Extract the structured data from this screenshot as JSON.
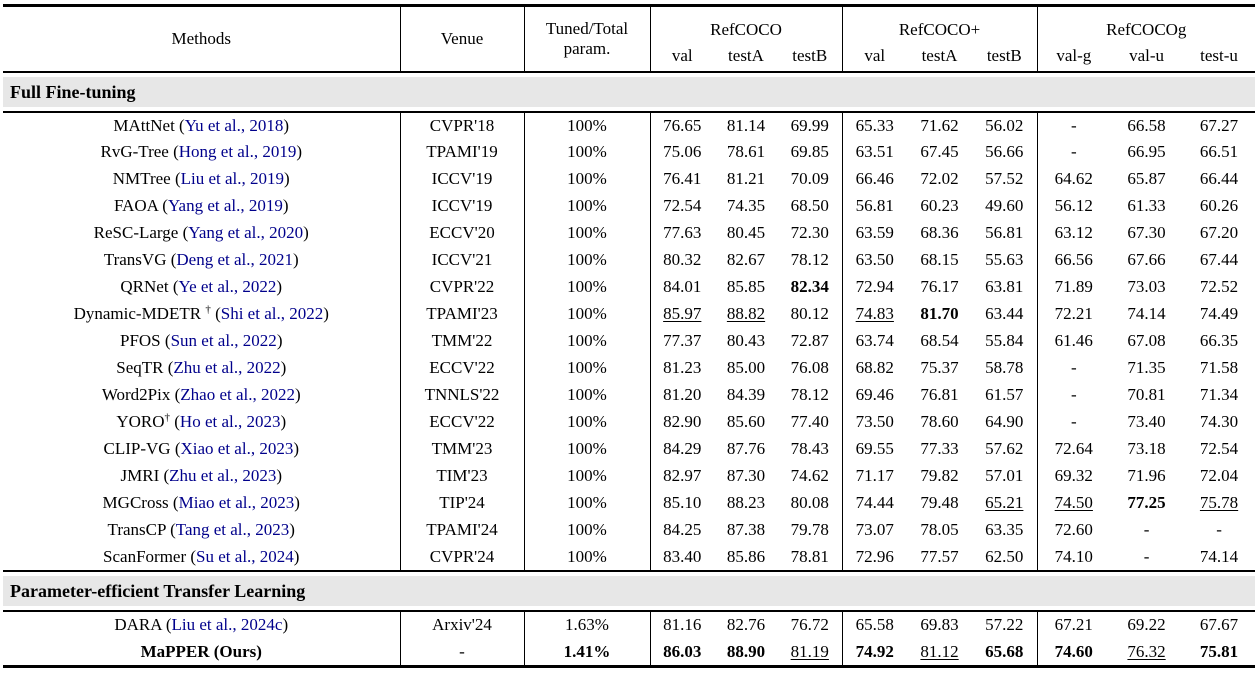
{
  "colors": {
    "citation_link": "#00008B",
    "section_band_bg": "#e7e7e7",
    "rule": "#000000"
  },
  "header": {
    "methods": "Methods",
    "venue": "Venue",
    "param_top": "Tuned/Total",
    "param_bottom": "param.",
    "groups": [
      {
        "label": "RefCOCO",
        "subs": [
          "val",
          "testA",
          "testB"
        ]
      },
      {
        "label": "RefCOCO+",
        "subs": [
          "val",
          "testA",
          "testB"
        ]
      },
      {
        "label": "RefCOCOg",
        "subs": [
          "val-g",
          "val-u",
          "test-u"
        ]
      }
    ]
  },
  "sections": [
    {
      "title": "Full Fine-tuning",
      "rows": [
        {
          "name": "MAttNet",
          "dagger": "",
          "dagger_space": false,
          "cite": "Yu et al., 2018",
          "venue": "CVPR'18",
          "param": "100%",
          "values": [
            "76.65",
            "81.14",
            "69.99",
            "65.33",
            "71.62",
            "56.02",
            "-",
            "66.58",
            "67.27"
          ],
          "styles": [
            "",
            "",
            "",
            "",
            "",
            "",
            "",
            "",
            ""
          ]
        },
        {
          "name": "RvG-Tree",
          "dagger": "",
          "dagger_space": false,
          "cite": "Hong et al., 2019",
          "venue": "TPAMI'19",
          "param": "100%",
          "values": [
            "75.06",
            "78.61",
            "69.85",
            "63.51",
            "67.45",
            "56.66",
            "-",
            "66.95",
            "66.51"
          ],
          "styles": [
            "",
            "",
            "",
            "",
            "",
            "",
            "",
            "",
            ""
          ]
        },
        {
          "name": "NMTree",
          "dagger": "",
          "dagger_space": false,
          "cite": "Liu et al., 2019",
          "venue": "ICCV'19",
          "param": "100%",
          "values": [
            "76.41",
            "81.21",
            "70.09",
            "66.46",
            "72.02",
            "57.52",
            "64.62",
            "65.87",
            "66.44"
          ],
          "styles": [
            "",
            "",
            "",
            "",
            "",
            "",
            "",
            "",
            ""
          ]
        },
        {
          "name": "FAOA",
          "dagger": "",
          "dagger_space": false,
          "cite": "Yang et al., 2019",
          "venue": "ICCV'19",
          "param": "100%",
          "values": [
            "72.54",
            "74.35",
            "68.50",
            "56.81",
            "60.23",
            "49.60",
            "56.12",
            "61.33",
            "60.26"
          ],
          "styles": [
            "",
            "",
            "",
            "",
            "",
            "",
            "",
            "",
            ""
          ]
        },
        {
          "name": "ReSC-Large",
          "dagger": "",
          "dagger_space": false,
          "cite": "Yang et al., 2020",
          "venue": "ECCV'20",
          "param": "100%",
          "values": [
            "77.63",
            "80.45",
            "72.30",
            "63.59",
            "68.36",
            "56.81",
            "63.12",
            "67.30",
            "67.20"
          ],
          "styles": [
            "",
            "",
            "",
            "",
            "",
            "",
            "",
            "",
            ""
          ]
        },
        {
          "name": "TransVG",
          "dagger": "",
          "dagger_space": false,
          "cite": "Deng et al., 2021",
          "venue": "ICCV'21",
          "param": "100%",
          "values": [
            "80.32",
            "82.67",
            "78.12",
            "63.50",
            "68.15",
            "55.63",
            "66.56",
            "67.66",
            "67.44"
          ],
          "styles": [
            "",
            "",
            "",
            "",
            "",
            "",
            "",
            "",
            ""
          ]
        },
        {
          "name": "QRNet",
          "dagger": "",
          "dagger_space": false,
          "cite": "Ye et al., 2022",
          "venue": "CVPR'22",
          "param": "100%",
          "values": [
            "84.01",
            "85.85",
            "82.34",
            "72.94",
            "76.17",
            "63.81",
            "71.89",
            "73.03",
            "72.52"
          ],
          "styles": [
            "",
            "",
            "b",
            "",
            "",
            "",
            "",
            "",
            ""
          ]
        },
        {
          "name": "Dynamic-MDETR",
          "dagger": "†",
          "dagger_space": true,
          "cite": "Shi et al., 2022",
          "venue": "TPAMI'23",
          "param": "100%",
          "values": [
            "85.97",
            "88.82",
            "80.12",
            "74.83",
            "81.70",
            "63.44",
            "72.21",
            "74.14",
            "74.49"
          ],
          "styles": [
            "u",
            "u",
            "",
            "u",
            "b",
            "",
            "",
            "",
            ""
          ]
        },
        {
          "name": "PFOS",
          "dagger": "",
          "dagger_space": false,
          "cite": "Sun et al., 2022",
          "venue": "TMM'22",
          "param": "100%",
          "values": [
            "77.37",
            "80.43",
            "72.87",
            "63.74",
            "68.54",
            "55.84",
            "61.46",
            "67.08",
            "66.35"
          ],
          "styles": [
            "",
            "",
            "",
            "",
            "",
            "",
            "",
            "",
            ""
          ]
        },
        {
          "name": "SeqTR",
          "dagger": "",
          "dagger_space": false,
          "cite": "Zhu et al., 2022",
          "venue": "ECCV'22",
          "param": "100%",
          "values": [
            "81.23",
            "85.00",
            "76.08",
            "68.82",
            "75.37",
            "58.78",
            "-",
            "71.35",
            "71.58"
          ],
          "styles": [
            "",
            "",
            "",
            "",
            "",
            "",
            "",
            "",
            ""
          ]
        },
        {
          "name": "Word2Pix",
          "dagger": "",
          "dagger_space": false,
          "cite": "Zhao et al., 2022",
          "venue": "TNNLS'22",
          "param": "100%",
          "values": [
            "81.20",
            "84.39",
            "78.12",
            "69.46",
            "76.81",
            "61.57",
            "-",
            "70.81",
            "71.34"
          ],
          "styles": [
            "",
            "",
            "",
            "",
            "",
            "",
            "",
            "",
            ""
          ]
        },
        {
          "name": "YORO",
          "dagger": "†",
          "dagger_space": false,
          "cite": "Ho et al., 2023",
          "venue": "ECCV'22",
          "param": "100%",
          "values": [
            "82.90",
            "85.60",
            "77.40",
            "73.50",
            "78.60",
            "64.90",
            "-",
            "73.40",
            "74.30"
          ],
          "styles": [
            "",
            "",
            "",
            "",
            "",
            "",
            "",
            "",
            ""
          ]
        },
        {
          "name": "CLIP-VG",
          "dagger": "",
          "dagger_space": false,
          "cite": "Xiao et al., 2023",
          "venue": "TMM'23",
          "param": "100%",
          "values": [
            "84.29",
            "87.76",
            "78.43",
            "69.55",
            "77.33",
            "57.62",
            "72.64",
            "73.18",
            "72.54"
          ],
          "styles": [
            "",
            "",
            "",
            "",
            "",
            "",
            "",
            "",
            ""
          ]
        },
        {
          "name": "JMRI",
          "dagger": "",
          "dagger_space": false,
          "cite": "Zhu et al., 2023",
          "venue": "TIM'23",
          "param": "100%",
          "values": [
            "82.97",
            "87.30",
            "74.62",
            "71.17",
            "79.82",
            "57.01",
            "69.32",
            "71.96",
            "72.04"
          ],
          "styles": [
            "",
            "",
            "",
            "",
            "",
            "",
            "",
            "",
            ""
          ]
        },
        {
          "name": "MGCross",
          "dagger": "",
          "dagger_space": false,
          "cite": "Miao et al., 2023",
          "venue": "TIP'24",
          "param": "100%",
          "values": [
            "85.10",
            "88.23",
            "80.08",
            "74.44",
            "79.48",
            "65.21",
            "74.50",
            "77.25",
            "75.78"
          ],
          "styles": [
            "",
            "",
            "",
            "",
            "",
            "u",
            "u",
            "b",
            "u"
          ]
        },
        {
          "name": "TransCP",
          "dagger": "",
          "dagger_space": false,
          "cite": "Tang et al., 2023",
          "venue": "TPAMI'24",
          "param": "100%",
          "values": [
            "84.25",
            "87.38",
            "79.78",
            "73.07",
            "78.05",
            "63.35",
            "72.60",
            "-",
            "-"
          ],
          "styles": [
            "",
            "",
            "",
            "",
            "",
            "",
            "",
            "",
            ""
          ]
        },
        {
          "name": "ScanFormer",
          "dagger": "",
          "dagger_space": false,
          "cite": "Su et al., 2024",
          "venue": "CVPR'24",
          "param": "100%",
          "values": [
            "83.40",
            "85.86",
            "78.81",
            "72.96",
            "77.57",
            "62.50",
            "74.10",
            "-",
            "74.14"
          ],
          "styles": [
            "",
            "",
            "",
            "",
            "",
            "",
            "",
            "",
            ""
          ]
        }
      ]
    },
    {
      "title": "Parameter-efficient Transfer Learning",
      "rows": [
        {
          "name": "DARA",
          "dagger": "",
          "dagger_space": false,
          "cite": "Liu et al., 2024c",
          "venue": "Arxiv'24",
          "param": "1.63%",
          "values": [
            "81.16",
            "82.76",
            "76.72",
            "65.58",
            "69.83",
            "57.22",
            "67.21",
            "69.22",
            "67.67"
          ],
          "styles": [
            "",
            "",
            "",
            "",
            "",
            "",
            "",
            "",
            ""
          ]
        },
        {
          "name": "MaPPER (Ours)",
          "name_bold": true,
          "dagger": "",
          "dagger_space": false,
          "cite": "",
          "venue": "-",
          "param": "1.41%",
          "param_bold": true,
          "values": [
            "86.03",
            "88.90",
            "81.19",
            "74.92",
            "81.12",
            "65.68",
            "74.60",
            "76.32",
            "75.81"
          ],
          "styles": [
            "b",
            "b",
            "u",
            "b",
            "u",
            "b",
            "b",
            "u",
            "b"
          ]
        }
      ]
    }
  ]
}
